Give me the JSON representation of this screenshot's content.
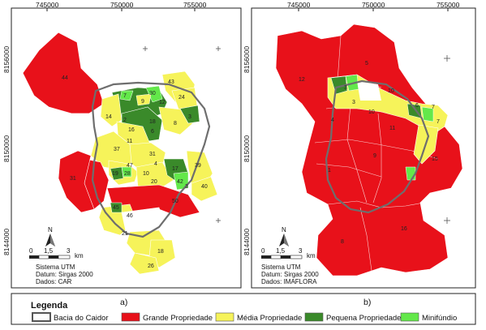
{
  "colors": {
    "grande": "#e8111a",
    "media": "#f6f35a",
    "pequena": "#3a8a2a",
    "minifundio": "#63e84a",
    "bacia": "#6e6e6e"
  },
  "panel_a": {
    "x_ticks": [
      "745000",
      "750000",
      "755000"
    ],
    "y_ticks": [
      "8156000",
      "8150000",
      "8144000"
    ],
    "north": "N",
    "scale_values": [
      "0",
      "1,5",
      "3"
    ],
    "scale_unit": "km",
    "info": [
      "Sistema UTM",
      "Datum: Sirgas 2000",
      "Dados: CAR"
    ],
    "letter": "a)",
    "parcel_labels": [
      "44",
      "43",
      "24",
      "30",
      "7",
      "9",
      "12",
      "3",
      "14",
      "16",
      "18",
      "11",
      "8",
      "6",
      "31",
      "37",
      "47",
      "17",
      "4",
      "28",
      "19",
      "10",
      "20",
      "42",
      "3",
      "39",
      "40",
      "31",
      "50",
      "45",
      "46",
      "21",
      "18",
      "26",
      "2"
    ]
  },
  "panel_b": {
    "x_ticks": [
      "745000",
      "750000",
      "755000"
    ],
    "y_ticks": [
      "8156000",
      "8150000",
      "8144000"
    ],
    "north": "N",
    "scale_values": [
      "0",
      "1,5",
      "3"
    ],
    "scale_unit": "km",
    "info": [
      "Sistema UTM",
      "Datum: Sirgas 2000",
      "Dados: IMAFLORA"
    ],
    "letter": "b)",
    "parcel_labels": [
      "5",
      "12",
      "3",
      "10",
      "3",
      "4",
      "10",
      "6",
      "7",
      "7",
      "11",
      "9",
      "15",
      "1",
      "8",
      "16"
    ]
  },
  "legend": {
    "title": "Legenda",
    "items": [
      {
        "label": "Bacia do Caidor",
        "color": "#ffffff"
      },
      {
        "label": "Grande Propriedade",
        "color": "#e8111a"
      },
      {
        "label": "Média Propriedade",
        "color": "#f6f35a"
      },
      {
        "label": "Pequena Propriedade",
        "color": "#3a8a2a"
      },
      {
        "label": "Minifúndio",
        "color": "#63e84a"
      }
    ]
  }
}
